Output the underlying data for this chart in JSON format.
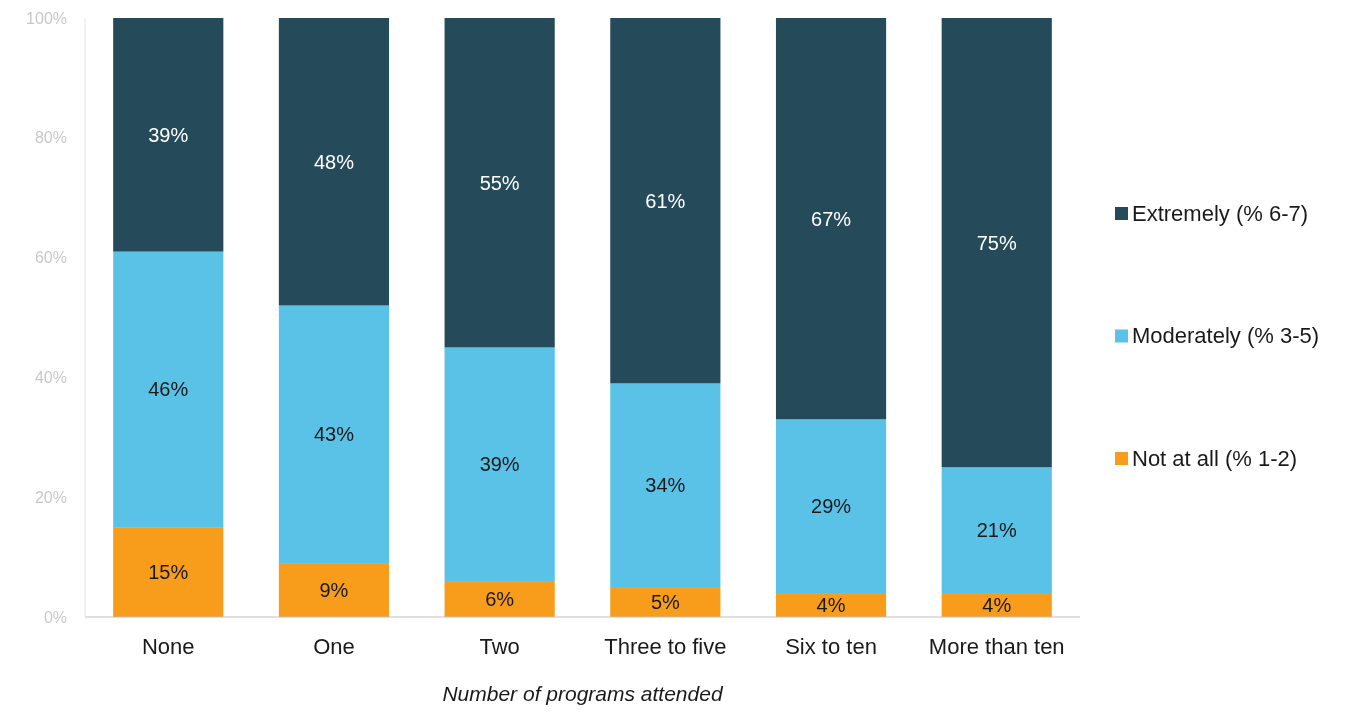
{
  "chart_data": {
    "type": "bar",
    "stacked": true,
    "xlabel": "Number of programs attended",
    "categories": [
      "None",
      "One",
      "Two",
      "Three to five",
      "Six to ten",
      "More than ten"
    ],
    "series": [
      {
        "name": "Not at all (% 1-2)",
        "color": "#f89c1c",
        "values": [
          15,
          9,
          6,
          5,
          4,
          4
        ],
        "value_labels": [
          "15%",
          "9%",
          "6%",
          "5%",
          "4%",
          "4%"
        ]
      },
      {
        "name": "Moderately (% 3-5)",
        "color": "#5bc2e7",
        "values": [
          46,
          43,
          39,
          34,
          29,
          21
        ],
        "value_labels": [
          "46%",
          "43%",
          "39%",
          "34%",
          "29%",
          "21%"
        ]
      },
      {
        "name": "Extremely (% 6-7)",
        "color": "#254b5a",
        "values": [
          39,
          48,
          55,
          61,
          67,
          75
        ],
        "value_labels": [
          "39%",
          "48%",
          "55%",
          "61%",
          "67%",
          "75%"
        ]
      }
    ],
    "ylim": [
      0,
      100
    ],
    "yticks": [
      {
        "value": 0,
        "label": "0%"
      },
      {
        "value": 20,
        "label": "20%"
      },
      {
        "value": 40,
        "label": "40%"
      },
      {
        "value": 60,
        "label": "60%"
      },
      {
        "value": 80,
        "label": "80%"
      },
      {
        "value": 100,
        "label": "100%"
      }
    ],
    "legend": "right",
    "grid": false
  }
}
